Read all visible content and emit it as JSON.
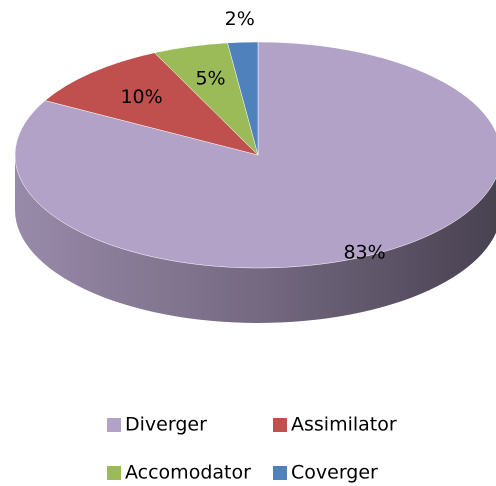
{
  "chart_data": {
    "type": "pie3d",
    "categories": [
      "Diverger",
      "Assimilator",
      "Accomodator",
      "Coverger"
    ],
    "values": [
      83,
      10,
      5,
      2
    ],
    "value_labels": [
      "83%",
      "10%",
      "5%",
      "2%"
    ],
    "colors": [
      "#b3a2c7",
      "#c0504d",
      "#9bbb59",
      "#4f81bd"
    ],
    "legend": "bottom"
  }
}
